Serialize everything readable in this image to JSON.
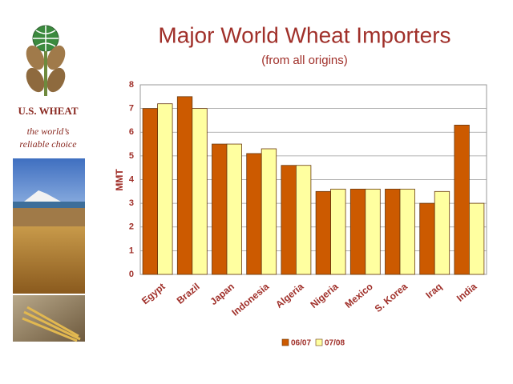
{
  "branding": {
    "name": "U.S. WHEAT",
    "tagline": [
      "the world’s",
      "reliable choice"
    ]
  },
  "chart_data": {
    "type": "bar",
    "title": "Major World Wheat Importers",
    "subtitle": "(from all origins)",
    "y_label": "MMT",
    "categories": [
      "Egypt",
      "Brazil",
      "Japan",
      "Indonesia",
      "Algeria",
      "Nigeria",
      "Mexico",
      "S. Korea",
      "Iraq",
      "India"
    ],
    "series": [
      {
        "name": "06/07",
        "color": "#cc5a00",
        "values": [
          7.0,
          7.5,
          5.5,
          5.1,
          4.6,
          3.5,
          3.6,
          3.6,
          3.0,
          6.3
        ]
      },
      {
        "name": "07/08",
        "color": "#ffffa0",
        "values": [
          7.2,
          7.0,
          5.5,
          5.3,
          4.6,
          3.6,
          3.6,
          3.6,
          3.5,
          3.0
        ]
      }
    ],
    "ylim": [
      0,
      8
    ],
    "yticks": [
      0,
      1,
      2,
      3,
      4,
      5,
      6,
      7,
      8
    ],
    "grid": true,
    "legend": "bottom"
  }
}
